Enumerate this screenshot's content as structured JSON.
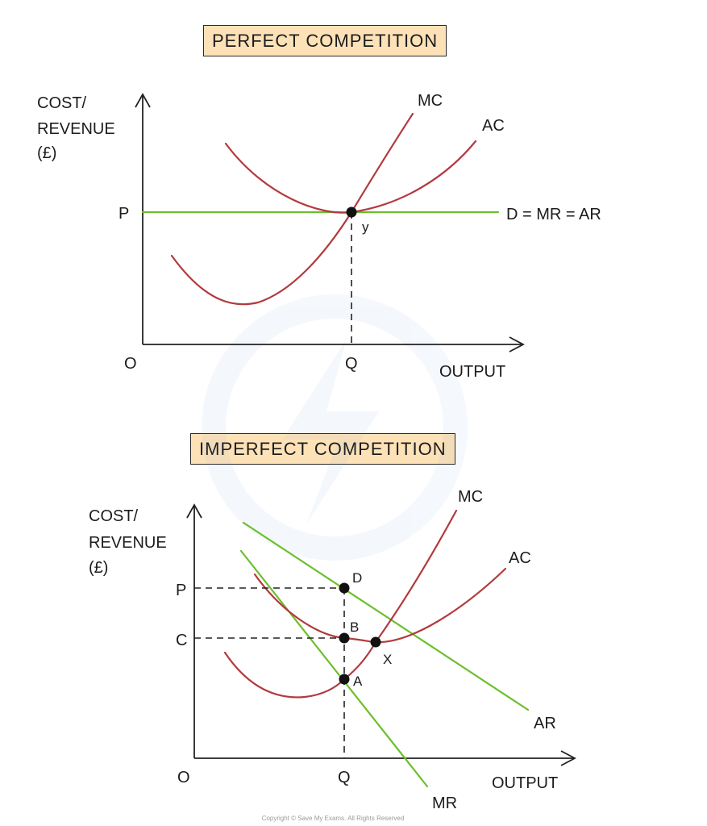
{
  "top": {
    "title": "PERFECT COMPETITION",
    "y_label_lines": [
      "COST/",
      "REVENUE",
      "(£)"
    ],
    "x_label": "OUTPUT",
    "origin": "O",
    "p_label": "P",
    "q_label": "Q",
    "mc_label": "MC",
    "ac_label": "AC",
    "demand_label": "D = MR = AR",
    "point_label": "y"
  },
  "bottom": {
    "title": "IMPERFECT COMPETITION",
    "y_label_lines": [
      "COST/",
      "REVENUE",
      "(£)"
    ],
    "x_label": "OUTPUT",
    "origin": "O",
    "p_label": "P",
    "c_label": "C",
    "q_label": "Q",
    "mc_label": "MC",
    "ac_label": "AC",
    "ar_label": "AR",
    "mr_label": "MR",
    "point_d": "D",
    "point_b": "B",
    "point_a": "A",
    "point_x": "X"
  },
  "copyright": "Copyright © Save My Exams. All Rights Reserved",
  "colors": {
    "cost_curves": "#b23a3e",
    "revenue_lines": "#6cbf2c",
    "title_fill": "#fde2b8"
  }
}
